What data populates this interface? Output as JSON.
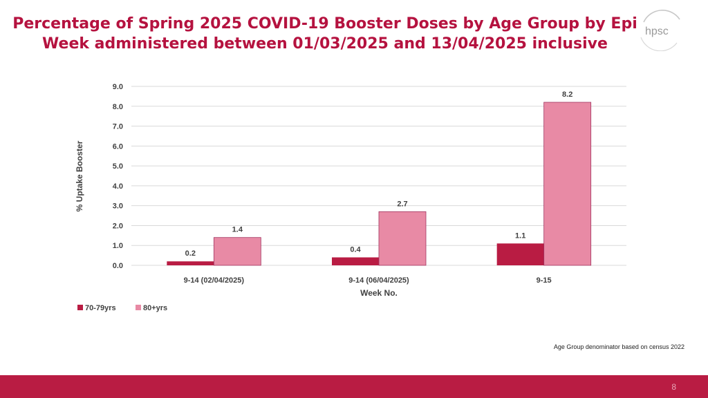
{
  "title": {
    "line1": "Percentage of Spring 2025 COVID-19 Booster Doses by Age Group by Epi",
    "line2": "Week administered between 01/03/2025 and 13/04/2025 inclusive"
  },
  "logo": {
    "text": "hpsc",
    "icon": "hpsc-logo-icon"
  },
  "colors": {
    "accent": "#b5123f",
    "series1": "#b91c43",
    "series2": "#e88aa5",
    "band": "#b91c43"
  },
  "chart_data": {
    "type": "bar",
    "title": "Percentage of Spring 2025 COVID-19 Booster Doses by Age Group by Epi Week administered between 01/03/2025 and 13/04/2025 inclusive",
    "categories": [
      "9-14 (02/04/2025)",
      "9-14 (06/04/2025)",
      "9-15"
    ],
    "series": [
      {
        "name": "70-79yrs",
        "values": [
          0.2,
          0.4,
          1.1
        ],
        "labels": [
          "0.2",
          "0.4",
          "1.1"
        ]
      },
      {
        "name": "80+yrs",
        "values": [
          1.4,
          2.7,
          8.2
        ],
        "labels": [
          "1.4",
          "2.7",
          "8.2"
        ]
      }
    ],
    "xlabel": "Week No.",
    "ylabel": "% Uptake Booster",
    "ylim": [
      0,
      9
    ],
    "yticks": [
      0,
      1,
      2,
      3,
      4,
      5,
      6,
      7,
      8,
      9
    ],
    "ytick_labels": [
      "0.0",
      "1.0",
      "2.0",
      "3.0",
      "4.0",
      "5.0",
      "6.0",
      "7.0",
      "8.0",
      "9.0"
    ],
    "grid": true,
    "legend_position": "bottom-left"
  },
  "footnote": "Age Group denominator based on census 2022",
  "page_number": "8"
}
